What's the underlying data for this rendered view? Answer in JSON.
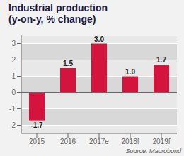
{
  "chart_data": {
    "type": "bar",
    "title": "Industrial production",
    "subtitle": "(y-on-y, % change)",
    "categories": [
      "2015",
      "2016",
      "2017e",
      "2018f",
      "2019f"
    ],
    "values": [
      -1.7,
      1.5,
      3.0,
      1.0,
      1.7
    ],
    "value_labels": [
      "-1.7",
      "1.5",
      "3.0",
      "1.0",
      "1.7"
    ],
    "data_labels": true,
    "color": "#d4143c",
    "ylim": [
      -2.5,
      3.5
    ],
    "yticks": [
      -2,
      -1,
      0,
      1,
      2,
      3
    ],
    "grid": true,
    "annotations": [
      "Source: Macrobond"
    ]
  }
}
